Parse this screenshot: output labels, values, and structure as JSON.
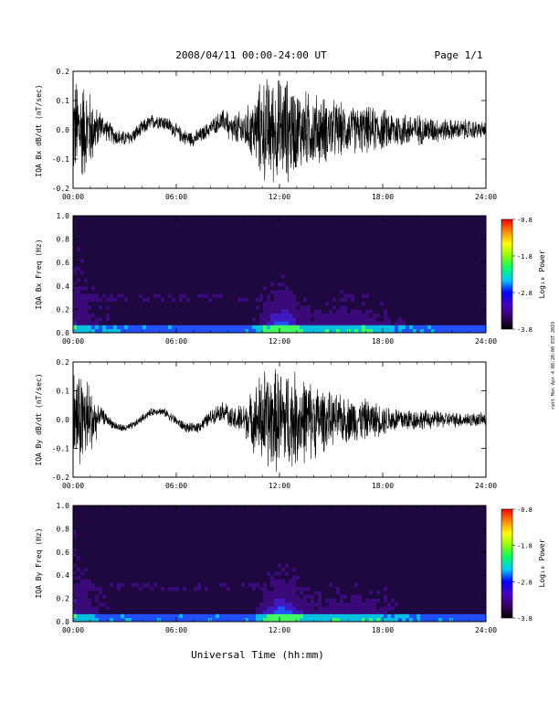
{
  "header": {
    "date_range": "2008/04/11  00:00-24:00 UT",
    "page_label": "Page 1/1"
  },
  "footer": {
    "xlabel": "Universal Time (hh:mm)",
    "side_note": "ratt Mon Apr 4 08:20:00 EST 2019"
  },
  "colors": {
    "trace": "#000000",
    "colorbar": [
      "#000000",
      "#3a0068",
      "#4a00c8",
      "#0000ff",
      "#00c8ff",
      "#00ff66",
      "#88ff00",
      "#ffff00",
      "#ff8800",
      "#ff0000"
    ]
  },
  "chart_data": [
    {
      "type": "line",
      "ylabel": "IQA Bx dB/dt (nT/sec)",
      "ylim": [
        -0.2,
        0.2
      ],
      "yticks": [
        "0.2",
        "0.1",
        "0.0",
        "-0.1",
        "-0.2"
      ],
      "xlim": [
        0,
        24
      ],
      "xticks": [
        "00:00",
        "06:00",
        "12:00",
        "18:00",
        "24:00"
      ],
      "envelope_hours": [
        0,
        0.5,
        1,
        1.5,
        2,
        3,
        4,
        5,
        6,
        7,
        8,
        9,
        10,
        10.5,
        11,
        11.5,
        12,
        12.5,
        13,
        14,
        15,
        16,
        17,
        18,
        19,
        20,
        21,
        22,
        23,
        24
      ],
      "envelope_amplitude": [
        0.2,
        0.2,
        0.15,
        0.06,
        0.04,
        0.03,
        0.03,
        0.03,
        0.03,
        0.03,
        0.03,
        0.05,
        0.08,
        0.12,
        0.2,
        0.2,
        0.2,
        0.2,
        0.16,
        0.14,
        0.12,
        0.09,
        0.09,
        0.08,
        0.07,
        0.06,
        0.05,
        0.04,
        0.04,
        0.03
      ]
    },
    {
      "type": "heatmap",
      "ylabel": "IQA Bx Freq (Hz)",
      "ylim": [
        0.0,
        1.0
      ],
      "yticks": [
        "1.0",
        "0.8",
        "0.6",
        "0.4",
        "0.2",
        "0.0"
      ],
      "xlim": [
        0,
        24
      ],
      "xticks": [
        "00:00",
        "06:00",
        "12:00",
        "18:00",
        "24:00"
      ],
      "colorbar_label": "Log₁₀ Power",
      "colorbar_ticks": [
        "-0.8",
        "-1.8",
        "-2.8",
        "-3.8"
      ]
    },
    {
      "type": "line",
      "ylabel": "IQA By dB/dt (nT/sec)",
      "ylim": [
        -0.2,
        0.2
      ],
      "yticks": [
        "0.2",
        "0.1",
        "0.0",
        "-0.1",
        "-0.2"
      ],
      "xlim": [
        0,
        24
      ],
      "xticks": [
        "00:00",
        "06:00",
        "12:00",
        "18:00",
        "24:00"
      ],
      "envelope_hours": [
        0,
        0.5,
        1,
        1.5,
        2,
        3,
        4,
        5,
        6,
        7,
        8,
        9,
        10,
        10.5,
        11,
        11.5,
        12,
        12.5,
        13,
        14,
        15,
        16,
        17,
        18,
        19,
        20,
        21,
        22,
        23,
        24
      ],
      "envelope_amplitude": [
        0.2,
        0.2,
        0.15,
        0.04,
        0.02,
        0.015,
        0.015,
        0.015,
        0.02,
        0.02,
        0.03,
        0.04,
        0.07,
        0.12,
        0.2,
        0.2,
        0.2,
        0.2,
        0.18,
        0.15,
        0.1,
        0.09,
        0.08,
        0.06,
        0.05,
        0.04,
        0.035,
        0.03,
        0.03,
        0.025
      ]
    },
    {
      "type": "heatmap",
      "ylabel": "IQA By Freq (Hz)",
      "ylim": [
        0.0,
        1.0
      ],
      "yticks": [
        "1.0",
        "0.8",
        "0.6",
        "0.4",
        "0.2",
        "0.0"
      ],
      "xlim": [
        0,
        24
      ],
      "xticks": [
        "00:00",
        "06:00",
        "12:00",
        "18:00",
        "24:00"
      ],
      "colorbar_label": "Log₁₀ Power",
      "colorbar_ticks": [
        "-0.8",
        "-1.8",
        "-2.8",
        "-3.8"
      ]
    }
  ]
}
